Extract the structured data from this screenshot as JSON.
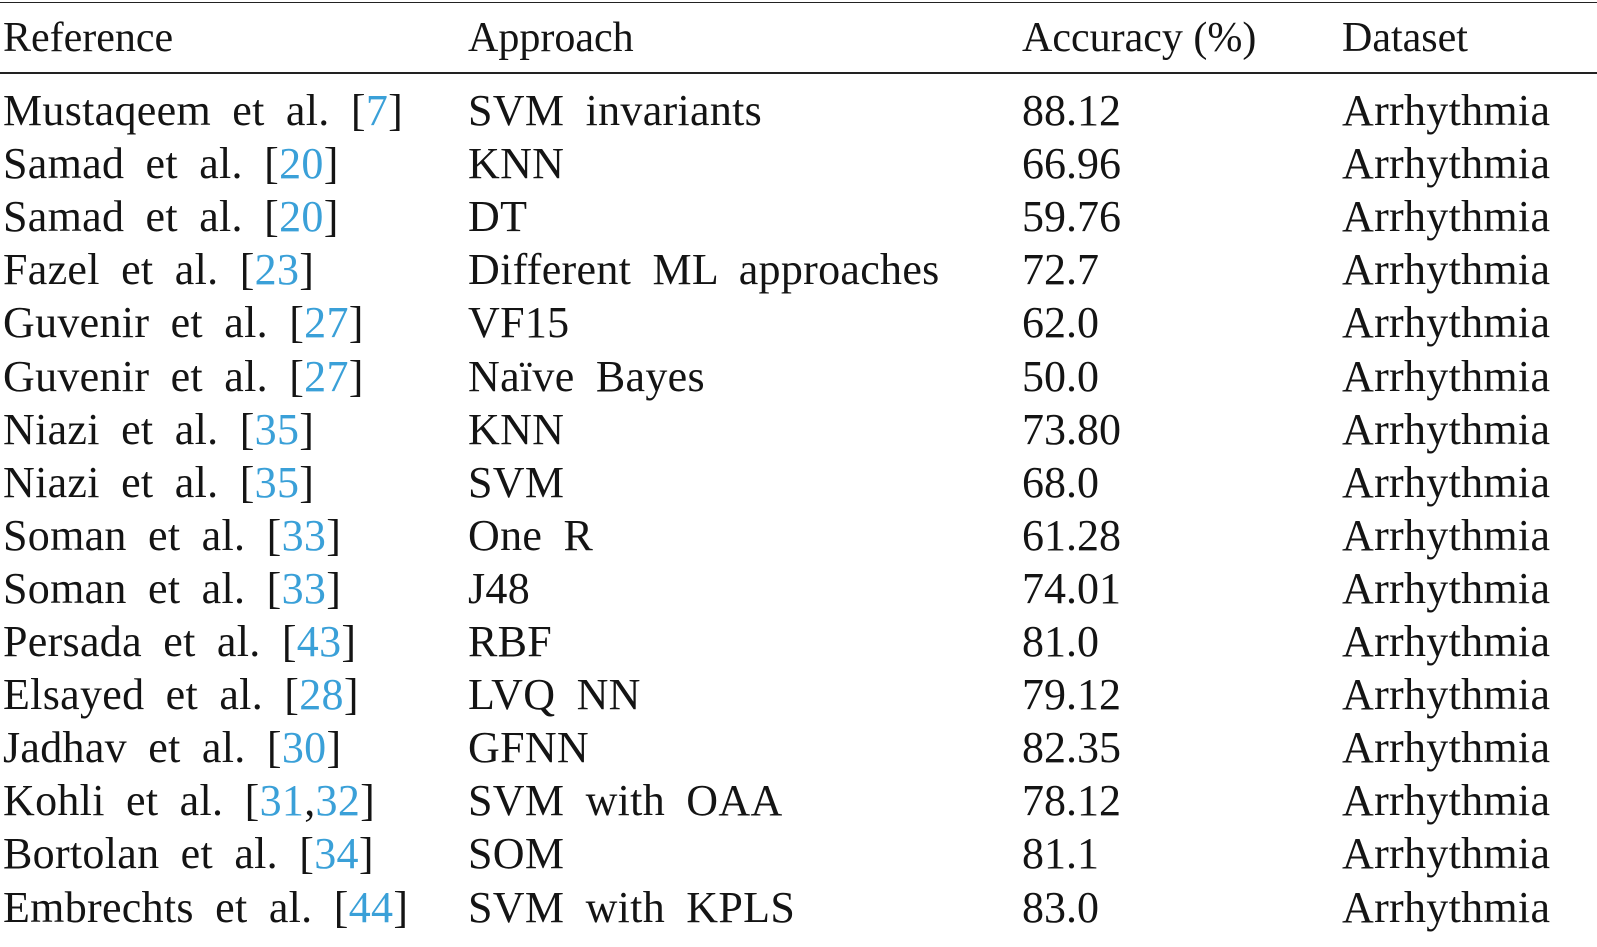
{
  "table": {
    "headers": [
      "Reference",
      "Approach",
      "Accuracy (%)",
      "Dataset"
    ],
    "rows": [
      {
        "author": "Mustaqeem et al. [",
        "refs": [
          "7"
        ],
        "close": "]",
        "approach": "SVM invariants",
        "accuracy": "88.12",
        "dataset": "Arrhythmia"
      },
      {
        "author": "Samad et al. [",
        "refs": [
          "20"
        ],
        "close": "]",
        "approach": "KNN",
        "accuracy": "66.96",
        "dataset": "Arrhythmia"
      },
      {
        "author": "Samad et al. [",
        "refs": [
          "20"
        ],
        "close": "]",
        "approach": "DT",
        "accuracy": "59.76",
        "dataset": "Arrhythmia"
      },
      {
        "author": "Fazel et al. [",
        "refs": [
          "23"
        ],
        "close": "]",
        "approach": "Different ML approaches",
        "accuracy": "72.7",
        "dataset": "Arrhythmia"
      },
      {
        "author": "Guvenir et al. [",
        "refs": [
          "27"
        ],
        "close": "]",
        "approach": "VF15",
        "accuracy": "62.0",
        "dataset": "Arrhythmia"
      },
      {
        "author": "Guvenir et al. [",
        "refs": [
          "27"
        ],
        "close": "]",
        "approach": "Naïve Bayes",
        "accuracy": "50.0",
        "dataset": "Arrhythmia"
      },
      {
        "author": "Niazi et al. [",
        "refs": [
          "35"
        ],
        "close": "]",
        "approach": "KNN",
        "accuracy": "73.80",
        "dataset": "Arrhythmia"
      },
      {
        "author": "Niazi et al. [",
        "refs": [
          "35"
        ],
        "close": "]",
        "approach": "SVM",
        "accuracy": "68.0",
        "dataset": "Arrhythmia"
      },
      {
        "author": "Soman et al. [",
        "refs": [
          "33"
        ],
        "close": "]",
        "approach": "One R",
        "accuracy": "61.28",
        "dataset": "Arrhythmia"
      },
      {
        "author": "Soman et al. [",
        "refs": [
          "33"
        ],
        "close": "]",
        "approach": "J48",
        "accuracy": "74.01",
        "dataset": "Arrhythmia"
      },
      {
        "author": "Persada et al. [",
        "refs": [
          "43"
        ],
        "close": "]",
        "approach": "RBF",
        "accuracy": "81.0",
        "dataset": "Arrhythmia"
      },
      {
        "author": "Elsayed et al. [",
        "refs": [
          "28"
        ],
        "close": "]",
        "approach": "LVQ NN",
        "accuracy": "79.12",
        "dataset": "Arrhythmia"
      },
      {
        "author": "Jadhav et al. [",
        "refs": [
          "30"
        ],
        "close": "]",
        "approach": "GFNN",
        "accuracy": "82.35",
        "dataset": "Arrhythmia"
      },
      {
        "author": "Kohli et al. [",
        "refs": [
          "31",
          "32"
        ],
        "close": "]",
        "approach": "SVM with OAA",
        "accuracy": "78.12",
        "dataset": "Arrhythmia"
      },
      {
        "author": "Bortolan et al. [",
        "refs": [
          "34"
        ],
        "close": "]",
        "approach": "SOM",
        "accuracy": "81.1",
        "dataset": "Arrhythmia"
      },
      {
        "author": "Embrechts et al. [",
        "refs": [
          "44"
        ],
        "close": "]",
        "approach": "SVM with KPLS",
        "accuracy": "83.0",
        "dataset": "Arrhythmia"
      }
    ]
  },
  "colors": {
    "text": "#141414",
    "citation_link": "#3aa0d8",
    "rule": "#222222"
  }
}
